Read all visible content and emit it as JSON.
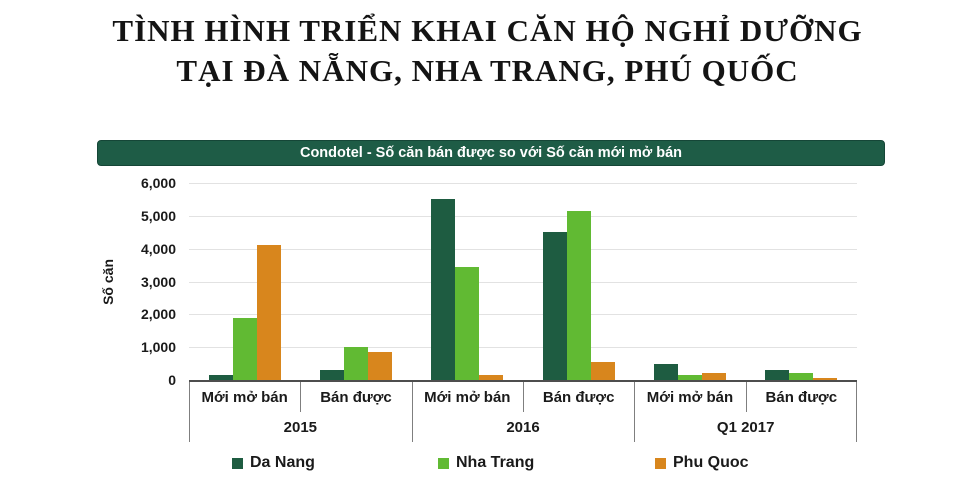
{
  "title": {
    "line1": "TÌNH HÌNH TRIỂN KHAI CĂN HỘ NGHỈ DƯỠNG",
    "line2": "TẠI  ĐÀ NẴNG, NHA TRANG, PHÚ QUỐC"
  },
  "chart_data": {
    "type": "bar",
    "title": "Condotel - Số căn bán được so với Số căn mới mở bán",
    "xlabel": "",
    "ylabel": "Số căn",
    "ylim": [
      0,
      6000
    ],
    "ytick_step": 1000,
    "ytick_labels": [
      "6,000",
      "5,000",
      "4,000",
      "3,000",
      "2,000",
      "1,000",
      "0"
    ],
    "grid": true,
    "legend_position": "bottom",
    "categories": [
      "Mới mở bán",
      "Bán được",
      "Mới mở bán",
      "Bán được",
      "Mới mở bán",
      "Bán được"
    ],
    "period_labels": [
      "2015",
      "2016",
      "Q1 2017"
    ],
    "series": [
      {
        "name": "Da Nang",
        "color": "#1e5c41",
        "values": [
          150,
          300,
          5500,
          4500,
          500,
          300
        ]
      },
      {
        "name": "Nha Trang",
        "color": "#61ba33",
        "values": [
          1900,
          1000,
          3450,
          5150,
          150,
          200
        ]
      },
      {
        "name": "Phu Quoc",
        "color": "#d8861d",
        "values": [
          4100,
          850,
          150,
          550,
          200,
          50
        ]
      }
    ]
  },
  "colors": {
    "header_bar_bg": "#1e5c46",
    "gridline": "#e2e2e2",
    "axis_line": "#4d4d4d",
    "table_line": "#7f7f7f",
    "text": "#1a1a1a"
  }
}
